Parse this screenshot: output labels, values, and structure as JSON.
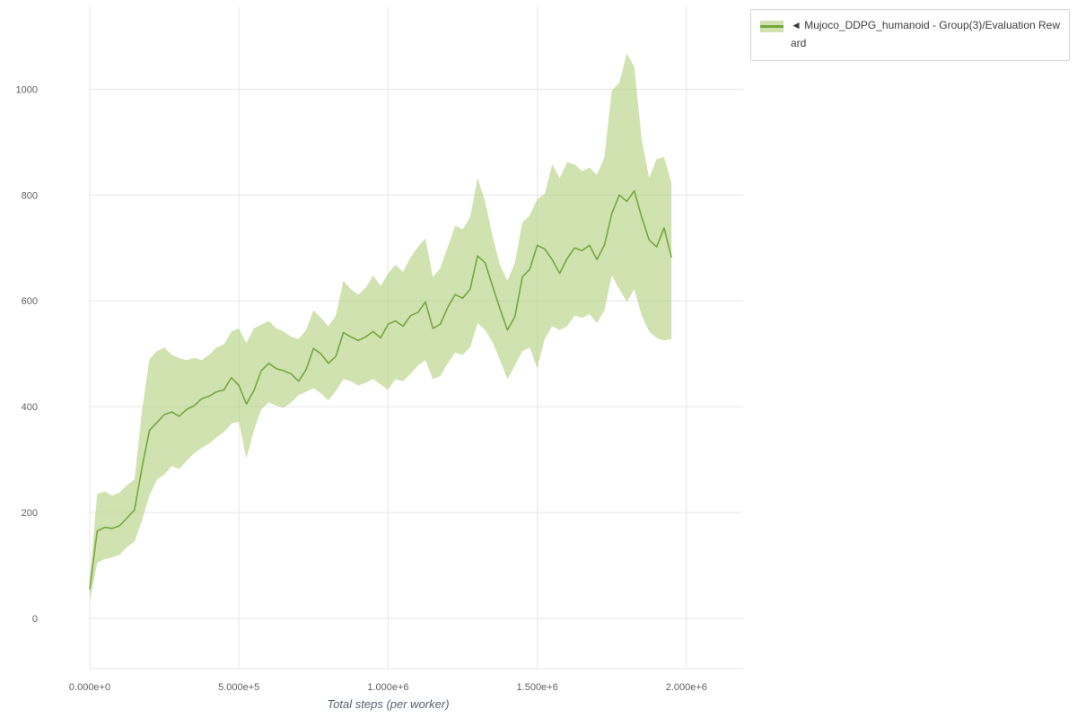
{
  "chart_data": {
    "type": "line",
    "title": "",
    "xlabel": "Total steps (per worker)",
    "ylabel": "",
    "grid": true,
    "grid_color": "#e6e6e6",
    "tick_color": "#606060",
    "xlim": [
      0,
      2190000
    ],
    "ylim": [
      -95,
      1155
    ],
    "x_ticks": [
      {
        "value": 0,
        "label": "0.000e+0"
      },
      {
        "value": 500000,
        "label": "5.000e+5"
      },
      {
        "value": 1000000,
        "label": "1.000e+6"
      },
      {
        "value": 1500000,
        "label": "1.500e+6"
      },
      {
        "value": 2000000,
        "label": "2.000e+6"
      }
    ],
    "y_ticks": [
      {
        "value": 0,
        "label": "0"
      },
      {
        "value": 200,
        "label": "200"
      },
      {
        "value": 400,
        "label": "400"
      },
      {
        "value": 600,
        "label": "600"
      },
      {
        "value": 800,
        "label": "800"
      },
      {
        "value": 1000,
        "label": "1000"
      }
    ],
    "legend": {
      "position": "top-right",
      "items": [
        {
          "label": "◄ Mujoco_DDPG_humanoid - Group(3)/Evaluation Reward"
        }
      ]
    },
    "series": [
      {
        "name": "Mujoco_DDPG_humanoid - Group(3)/Evaluation Reward",
        "type": "line_with_band",
        "color": "#76a83e",
        "band_color": "rgba(178,209,126,0.62)",
        "x": [
          0,
          25000,
          50000,
          75000,
          100000,
          125000,
          150000,
          175000,
          200000,
          225000,
          250000,
          275000,
          300000,
          325000,
          350000,
          375000,
          400000,
          425000,
          450000,
          475000,
          500000,
          525000,
          550000,
          575000,
          600000,
          625000,
          650000,
          675000,
          700000,
          725000,
          750000,
          775000,
          800000,
          825000,
          850000,
          875000,
          900000,
          925000,
          950000,
          975000,
          1000000,
          1025000,
          1050000,
          1075000,
          1100000,
          1125000,
          1150000,
          1175000,
          1200000,
          1225000,
          1250000,
          1275000,
          1300000,
          1325000,
          1350000,
          1375000,
          1400000,
          1425000,
          1450000,
          1475000,
          1500000,
          1525000,
          1550000,
          1575000,
          1600000,
          1625000,
          1650000,
          1675000,
          1700000,
          1725000,
          1750000,
          1775000,
          1800000,
          1825000,
          1850000,
          1875000,
          1900000,
          1925000,
          1950000
        ],
        "mean": [
          55,
          165,
          172,
          170,
          175,
          190,
          205,
          285,
          355,
          370,
          385,
          390,
          382,
          395,
          402,
          415,
          420,
          428,
          432,
          455,
          440,
          405,
          430,
          468,
          482,
          472,
          468,
          462,
          448,
          470,
          510,
          500,
          482,
          495,
          540,
          532,
          525,
          532,
          542,
          530,
          556,
          562,
          552,
          572,
          578,
          598,
          548,
          556,
          588,
          612,
          605,
          622,
          685,
          672,
          628,
          585,
          545,
          570,
          645,
          660,
          705,
          698,
          678,
          652,
          680,
          700,
          695,
          705,
          678,
          705,
          765,
          800,
          788,
          808,
          758,
          715,
          702,
          738,
          682
        ],
        "lower": [
          32,
          105,
          112,
          115,
          120,
          135,
          145,
          185,
          232,
          262,
          272,
          288,
          282,
          298,
          312,
          322,
          330,
          342,
          352,
          368,
          372,
          302,
          355,
          395,
          408,
          402,
          398,
          408,
          422,
          428,
          435,
          425,
          412,
          430,
          452,
          448,
          440,
          445,
          452,
          442,
          432,
          452,
          448,
          462,
          478,
          488,
          452,
          458,
          482,
          502,
          498,
          512,
          558,
          545,
          522,
          488,
          452,
          478,
          505,
          512,
          472,
          528,
          552,
          545,
          552,
          572,
          568,
          575,
          558,
          582,
          648,
          622,
          598,
          622,
          572,
          542,
          530,
          525,
          528
        ],
        "upper": [
          72,
          235,
          240,
          232,
          238,
          252,
          262,
          392,
          490,
          505,
          512,
          498,
          492,
          488,
          492,
          488,
          498,
          512,
          518,
          542,
          548,
          520,
          548,
          555,
          562,
          548,
          542,
          532,
          528,
          545,
          582,
          568,
          552,
          572,
          638,
          622,
          612,
          625,
          648,
          628,
          652,
          668,
          655,
          682,
          702,
          718,
          645,
          662,
          702,
          742,
          735,
          758,
          832,
          788,
          722,
          668,
          638,
          672,
          748,
          762,
          792,
          802,
          858,
          832,
          862,
          858,
          845,
          852,
          838,
          872,
          998,
          1012,
          1068,
          1042,
          905,
          832,
          868,
          872,
          822
        ]
      }
    ]
  }
}
